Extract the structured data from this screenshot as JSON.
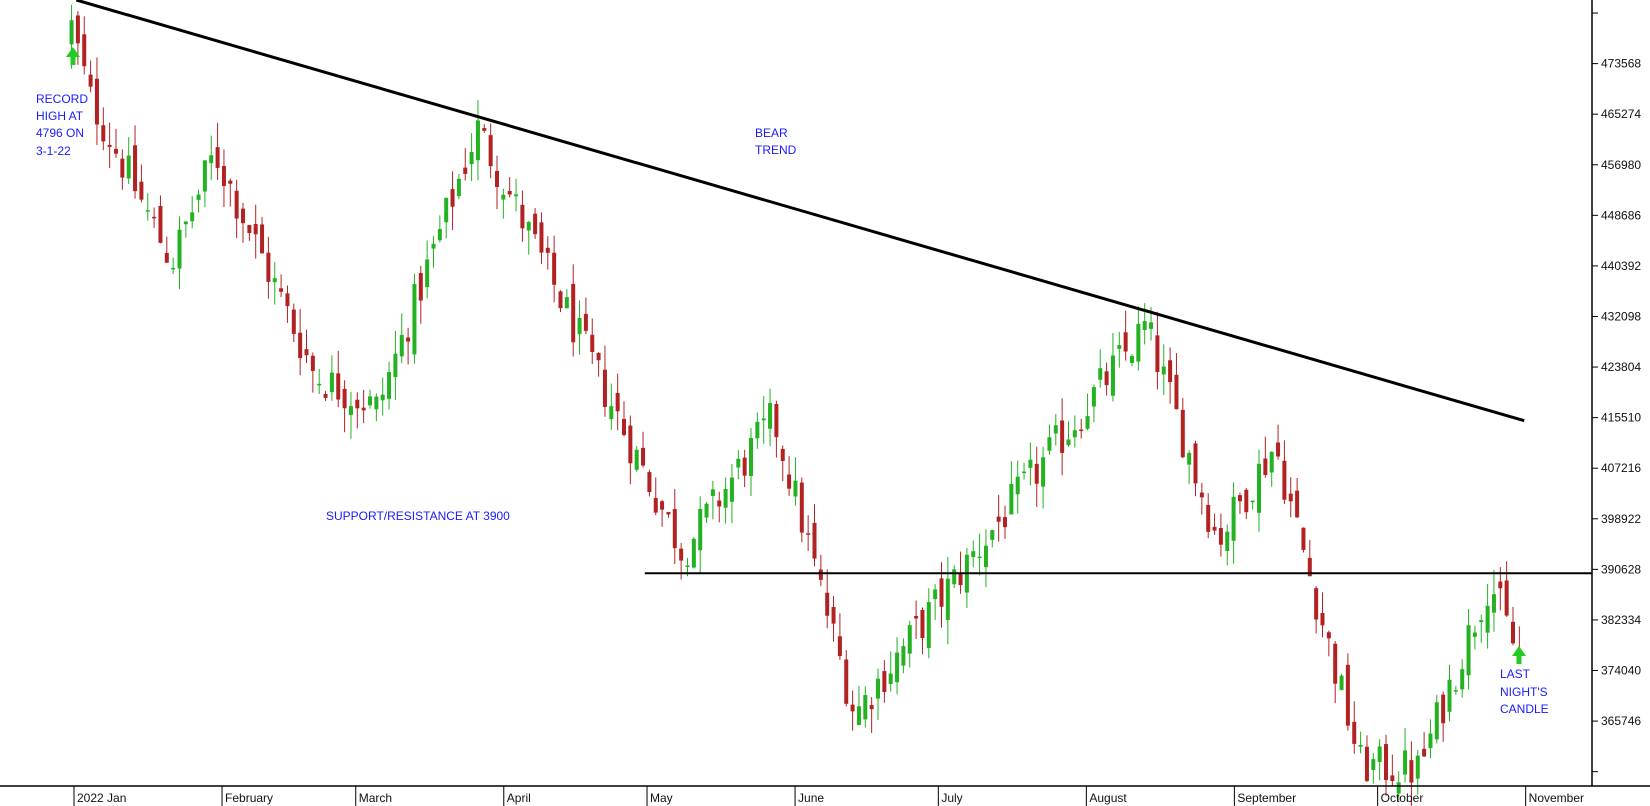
{
  "chart_data": {
    "type": "candlestick",
    "x_axis_labels": [
      "2022 Jan",
      "February",
      "March",
      "April",
      "May",
      "June",
      "July",
      "August",
      "September",
      "October",
      "November"
    ],
    "y_tick_labels": [
      "473568",
      "465274",
      "456980",
      "448686",
      "440392",
      "432098",
      "423804",
      "415510",
      "407216",
      "398922",
      "390628",
      "382334",
      "374040",
      "365746"
    ],
    "ylim": [
      3551,
      4840
    ],
    "grid": false,
    "colors": {
      "up": "#22b222",
      "down": "#b22222",
      "trend": "#000000",
      "annotation": "#1a1aff",
      "arrow": "#22cc22"
    },
    "annotations": {
      "record_high": [
        "RECORD",
        "HIGH AT",
        "4796 ON",
        "3-1-22"
      ],
      "bear_trend": [
        "BEAR",
        "TREND"
      ],
      "support": "SUPPORT/RESISTANCE AT 3900",
      "last_candle": [
        "LAST",
        "NIGHT'S",
        "CANDLE"
      ]
    },
    "trendline": {
      "label": "BEAR TREND",
      "from": {
        "date": "2022-01-04",
        "value": 4840
      },
      "to": {
        "date": "2022-11-03",
        "value": 4150
      }
    },
    "support_line": {
      "value": 3900,
      "from_date": "2022-05-02"
    },
    "anchor_closes": [
      {
        "date": "2022-01-03",
        "value": 4796
      },
      {
        "date": "2022-01-07",
        "value": 4677
      },
      {
        "date": "2022-01-24",
        "value": 4410
      },
      {
        "date": "2022-02-02",
        "value": 4590
      },
      {
        "date": "2022-02-23",
        "value": 4225
      },
      {
        "date": "2022-03-08",
        "value": 4170
      },
      {
        "date": "2022-03-29",
        "value": 4630
      },
      {
        "date": "2022-04-29",
        "value": 4130
      },
      {
        "date": "2022-05-11",
        "value": 3935
      },
      {
        "date": "2022-05-30",
        "value": 4155
      },
      {
        "date": "2022-06-16",
        "value": 3670
      },
      {
        "date": "2022-07-08",
        "value": 3900
      },
      {
        "date": "2022-08-16",
        "value": 4305
      },
      {
        "date": "2022-08-31",
        "value": 3955
      },
      {
        "date": "2022-09-12",
        "value": 4110
      },
      {
        "date": "2022-09-30",
        "value": 3585
      },
      {
        "date": "2022-10-12",
        "value": 3577
      },
      {
        "date": "2022-10-27",
        "value": 3890
      },
      {
        "date": "2022-11-02",
        "value": 3760
      },
      {
        "date": "2022-11-03",
        "value": 3730
      }
    ]
  }
}
